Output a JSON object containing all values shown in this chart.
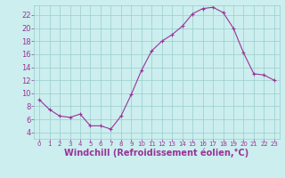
{
  "x": [
    0,
    1,
    2,
    3,
    4,
    5,
    6,
    7,
    8,
    9,
    10,
    11,
    12,
    13,
    14,
    15,
    16,
    17,
    18,
    19,
    20,
    21,
    22,
    23
  ],
  "y": [
    9.0,
    7.5,
    6.5,
    6.3,
    6.8,
    5.0,
    5.0,
    4.5,
    6.5,
    9.8,
    13.5,
    16.5,
    18.0,
    19.0,
    20.3,
    22.2,
    23.0,
    23.2,
    22.4,
    20.0,
    16.2,
    13.0,
    12.8,
    12.0
  ],
  "line_color": "#993399",
  "marker": "+",
  "marker_color": "#993399",
  "bg_color": "#cceeee",
  "grid_color": "#99cccc",
  "tick_label_color": "#993399",
  "xlabel": "Windchill (Refroidissement éolien,°C)",
  "xlabel_color": "#993399",
  "xlabel_fontsize": 7,
  "tick_fontsize": 6,
  "ylim": [
    3,
    23.5
  ],
  "xlim": [
    -0.5,
    23.5
  ],
  "yticks": [
    4,
    6,
    8,
    10,
    12,
    14,
    16,
    18,
    20,
    22
  ],
  "xticks": [
    0,
    1,
    2,
    3,
    4,
    5,
    6,
    7,
    8,
    9,
    10,
    11,
    12,
    13,
    14,
    15,
    16,
    17,
    18,
    19,
    20,
    21,
    22,
    23
  ]
}
